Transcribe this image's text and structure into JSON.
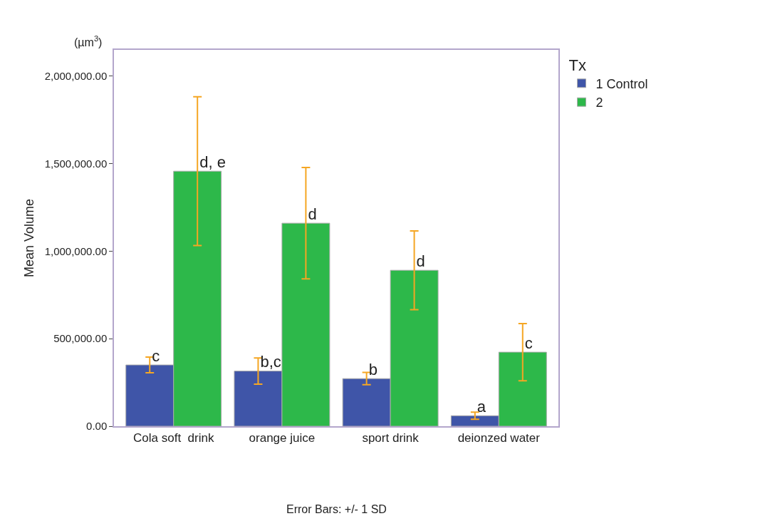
{
  "chart_data": {
    "type": "bar",
    "ylabel": "Mean Volume",
    "legend_title": "Tx",
    "categories": [
      "Cola soft  drink",
      "orange juice",
      "sport drink",
      "deionzed water"
    ],
    "series": [
      {
        "name": "1 Control",
        "color": "#3f55a8",
        "values": [
          350000,
          315000,
          272000,
          60000
        ],
        "errors": [
          45000,
          75000,
          35000,
          20000
        ],
        "value_labels": [
          "c",
          "b,c",
          "b",
          "a"
        ]
      },
      {
        "name": "2",
        "color": "#2db84a",
        "values": [
          1457000,
          1160000,
          891000,
          423000
        ],
        "errors": [
          425000,
          318000,
          225000,
          163000
        ],
        "value_labels": [
          "d, e",
          "d",
          "d",
          "c"
        ]
      }
    ],
    "ylim": [
      0,
      2150000
    ],
    "yticks": [
      {
        "value": 0,
        "label": "0.00"
      },
      {
        "value": 500000,
        "label": "500,000.00"
      },
      {
        "value": 1000000,
        "label": "1,000,000.00"
      },
      {
        "value": 1500000,
        "label": "1,500,000.00"
      },
      {
        "value": 2000000,
        "label": "2,000,000.00"
      }
    ],
    "annotations": [
      "(µm$^{3}$)",
      "Error Bars: +/- 1 SD"
    ],
    "legend": "top right"
  }
}
